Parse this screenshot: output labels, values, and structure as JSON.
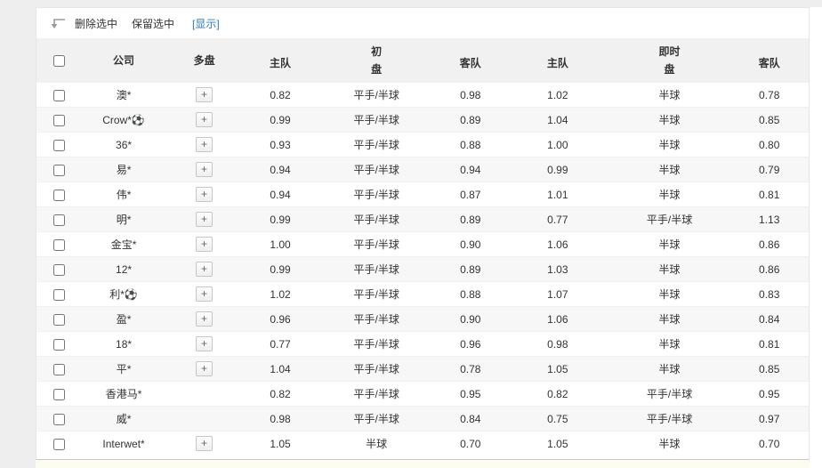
{
  "toolbar": {
    "delete_selected": "删除选中",
    "keep_selected": "保留选中",
    "show_link": "[显示]",
    "link_color": "#2b7bb9",
    "icon": "corner-return-arrow-icon"
  },
  "table": {
    "plus_label": "+",
    "headers": {
      "company": "公司",
      "multi": "多盘",
      "initial_group": "初",
      "initial_handicap": "盘",
      "initial_home": "主队",
      "initial_away": "客队",
      "live_group": "即时",
      "live_handicap": "盘",
      "live_home": "主队",
      "live_away": "客队"
    },
    "rows": [
      {
        "company": "澳*",
        "multi": true,
        "init": [
          "0.82",
          "平手/半球",
          "0.98"
        ],
        "live": [
          "1.02",
          "半球",
          "0.78"
        ]
      },
      {
        "company": "Crow*⚽",
        "multi": true,
        "init": [
          "0.99",
          "平手/半球",
          "0.89"
        ],
        "live": [
          "1.04",
          "半球",
          "0.85"
        ]
      },
      {
        "company": "36*",
        "multi": true,
        "init": [
          "0.93",
          "平手/半球",
          "0.88"
        ],
        "live": [
          "1.00",
          "半球",
          "0.80"
        ]
      },
      {
        "company": "易*",
        "multi": true,
        "init": [
          "0.94",
          "平手/半球",
          "0.94"
        ],
        "live": [
          "0.99",
          "半球",
          "0.79"
        ]
      },
      {
        "company": "伟*",
        "multi": true,
        "init": [
          "0.94",
          "平手/半球",
          "0.87"
        ],
        "live": [
          "1.01",
          "半球",
          "0.81"
        ]
      },
      {
        "company": "明*",
        "multi": true,
        "init": [
          "0.99",
          "平手/半球",
          "0.89"
        ],
        "live": [
          "0.77",
          "平手/半球",
          "1.13"
        ]
      },
      {
        "company": "金宝*",
        "multi": true,
        "init": [
          "1.00",
          "平手/半球",
          "0.90"
        ],
        "live": [
          "1.06",
          "半球",
          "0.86"
        ]
      },
      {
        "company": "12*",
        "multi": true,
        "init": [
          "0.99",
          "平手/半球",
          "0.89"
        ],
        "live": [
          "1.03",
          "半球",
          "0.86"
        ]
      },
      {
        "company": "利*⚽",
        "multi": true,
        "init": [
          "1.02",
          "平手/半球",
          "0.88"
        ],
        "live": [
          "1.07",
          "半球",
          "0.83"
        ]
      },
      {
        "company": "盈*",
        "multi": true,
        "init": [
          "0.96",
          "平手/半球",
          "0.90"
        ],
        "live": [
          "1.06",
          "半球",
          "0.84"
        ]
      },
      {
        "company": "18*",
        "multi": true,
        "init": [
          "0.77",
          "平手/半球",
          "0.96"
        ],
        "live": [
          "0.98",
          "半球",
          "0.81"
        ]
      },
      {
        "company": "平*",
        "multi": true,
        "init": [
          "1.04",
          "平手/半球",
          "0.78"
        ],
        "live": [
          "1.05",
          "半球",
          "0.85"
        ]
      },
      {
        "company": "香港马*",
        "multi": false,
        "init": [
          "0.82",
          "平手/半球",
          "0.95"
        ],
        "live": [
          "0.82",
          "平手/半球",
          "0.95"
        ]
      },
      {
        "company": "威*",
        "multi": false,
        "init": [
          "0.98",
          "平手/半球",
          "0.84"
        ],
        "live": [
          "0.75",
          "平手/半球",
          "0.97"
        ]
      },
      {
        "company": "Interwet*",
        "multi": true,
        "init": [
          "1.05",
          "半球",
          "0.70"
        ],
        "live": [
          "1.05",
          "半球",
          "0.70"
        ]
      }
    ]
  }
}
